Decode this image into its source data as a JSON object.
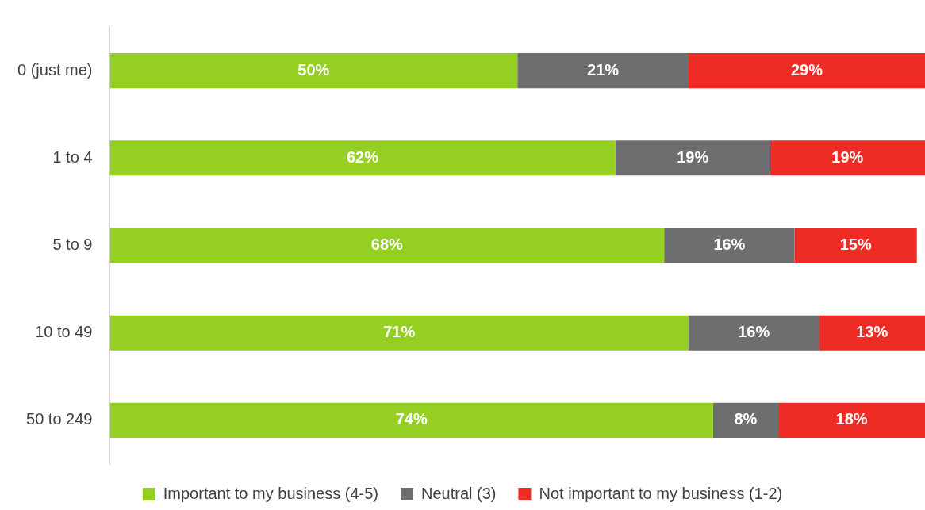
{
  "chart_data": {
    "type": "bar",
    "orientation": "horizontal",
    "stacked": true,
    "categories": [
      "0 (just me)",
      "1 to 4",
      "5 to 9",
      "10 to 49",
      "50 to 249"
    ],
    "series": [
      {
        "name": "Important to my business (4-5)",
        "color": "#95cf22",
        "values": [
          50,
          62,
          68,
          71,
          74
        ],
        "value_labels": [
          "50%",
          "62%",
          "68%",
          "71%",
          "74%"
        ]
      },
      {
        "name": "Neutral (3)",
        "color": "#6d6e70",
        "values": [
          21,
          19,
          16,
          16,
          8
        ],
        "value_labels": [
          "21%",
          "19%",
          "16%",
          "16%",
          "8%"
        ]
      },
      {
        "name": "Not important to my business (1-2)",
        "color": "#ee2b24",
        "values": [
          29,
          19,
          15,
          13,
          18
        ],
        "value_labels": [
          "29%",
          "19%",
          "15%",
          "13%",
          "18%"
        ]
      }
    ],
    "tick_labels": "y",
    "legend": "bottom"
  }
}
